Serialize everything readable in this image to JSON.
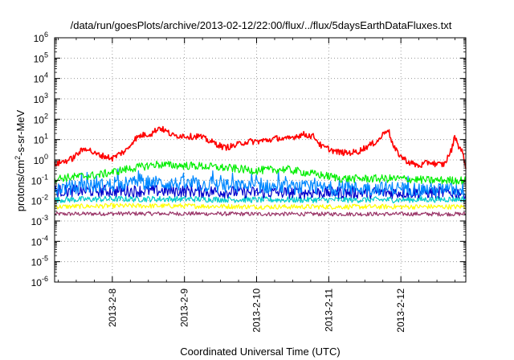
{
  "chart_data": {
    "type": "line",
    "title": "/data/run/goesPlots/archive/2013-02-12/22:00/flux/../flux/5daysEarthDataFluxes.txt",
    "xlabel": "Coordinated Universal Time (UTC)",
    "ylabel": "protons/cm²-s-sr-MeV",
    "y_scale": "log",
    "ylim": [
      -6,
      6
    ],
    "y_tick_exponents": [
      -6,
      -5,
      -4,
      -3,
      -2,
      -1,
      0,
      1,
      2,
      3,
      4,
      5,
      6
    ],
    "x_unit": "days",
    "xlim": [
      7.2,
      12.9
    ],
    "x_tick_values": [
      8,
      9,
      10,
      11,
      12
    ],
    "x_tick_labels": [
      "2013-2-8",
      "2013-2-9",
      "2013-2-10",
      "2013-2-11",
      "2013-2-12"
    ],
    "grid": true,
    "legend": "none",
    "series": [
      {
        "color": "#ff0000",
        "x": [
          7.2,
          7.3,
          7.4,
          7.45,
          7.55,
          7.65,
          7.75,
          7.9,
          8.0,
          8.1,
          8.2,
          8.3,
          8.4,
          8.55,
          8.65,
          8.75,
          8.85,
          8.95,
          9.1,
          9.2,
          9.3,
          9.45,
          9.55,
          9.7,
          9.8,
          9.9,
          10.0,
          10.2,
          10.3,
          10.4,
          10.55,
          10.65,
          10.8,
          10.9,
          11.0,
          11.1,
          11.25,
          11.4,
          11.5,
          11.6,
          11.7,
          11.78,
          11.82,
          11.9,
          12.0,
          12.1,
          12.25,
          12.4,
          12.5,
          12.6,
          12.7,
          12.75,
          12.8,
          12.85,
          12.9
        ],
        "values": [
          0.6,
          0.8,
          1.0,
          1.2,
          2.5,
          4.0,
          2.0,
          1.5,
          1.2,
          2.0,
          3.0,
          10,
          16,
          20,
          40,
          25,
          15,
          16,
          14,
          15,
          10,
          6,
          4,
          5,
          7,
          8,
          8,
          10,
          12,
          10,
          15,
          18,
          14,
          4.5,
          3.5,
          2.5,
          2.2,
          2.5,
          4,
          6,
          10,
          25,
          35,
          4,
          1.5,
          0.8,
          0.5,
          0.8,
          0.6,
          0.6,
          3,
          15,
          5,
          2.5,
          0.5
        ],
        "jitter": 0.15
      },
      {
        "color": "#00ee00",
        "x": [
          7.2,
          7.5,
          7.8,
          8.2,
          8.6,
          8.8,
          9.2,
          9.6,
          10.0,
          10.4,
          10.8,
          11.2,
          11.6,
          12.0,
          12.4,
          12.9
        ],
        "values": [
          0.12,
          0.15,
          0.18,
          0.35,
          0.6,
          0.55,
          0.5,
          0.4,
          0.3,
          0.35,
          0.2,
          0.12,
          0.12,
          0.12,
          0.1,
          0.1
        ],
        "jitter": 0.2
      },
      {
        "color": "#0088ff",
        "x": [
          7.2,
          7.6,
          8.0,
          8.4,
          8.8,
          9.2,
          9.6,
          10.0,
          10.5,
          11.0,
          11.5,
          12.0,
          12.5,
          12.9
        ],
        "values": [
          0.04,
          0.05,
          0.06,
          0.08,
          0.07,
          0.06,
          0.05,
          0.05,
          0.045,
          0.04,
          0.04,
          0.04,
          0.035,
          0.035
        ],
        "jitter": 0.35
      },
      {
        "color": "#0000cc",
        "x": [
          7.2,
          8.0,
          9.0,
          10.0,
          11.0,
          12.0,
          12.9
        ],
        "values": [
          0.03,
          0.03,
          0.03,
          0.025,
          0.025,
          0.025,
          0.025
        ],
        "jitter": 0.3
      },
      {
        "color": "#00cccc",
        "x": [
          7.2,
          8.0,
          9.0,
          10.0,
          11.0,
          12.0,
          12.9
        ],
        "values": [
          0.011,
          0.012,
          0.012,
          0.011,
          0.011,
          0.011,
          0.012
        ],
        "jitter": 0.15
      },
      {
        "color": "#ffff00",
        "x": [
          7.2,
          8.0,
          9.0,
          10.0,
          11.0,
          12.0,
          12.9
        ],
        "values": [
          0.005,
          0.0055,
          0.0055,
          0.005,
          0.005,
          0.005,
          0.005
        ],
        "jitter": 0.12
      },
      {
        "color": "#993366",
        "x": [
          7.2,
          8.0,
          9.0,
          10.0,
          11.0,
          12.0,
          12.9
        ],
        "values": [
          0.0022,
          0.0023,
          0.0023,
          0.0022,
          0.0022,
          0.0022,
          0.0022
        ],
        "jitter": 0.1
      }
    ]
  }
}
